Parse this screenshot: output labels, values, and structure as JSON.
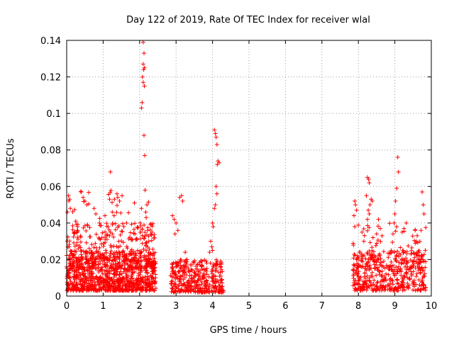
{
  "chart_data": {
    "type": "scatter",
    "title": "Day 122 of 2019, Rate Of TEC Index for receiver wlal",
    "xlabel": "GPS time / hours",
    "ylabel": "ROTI / TECUs",
    "xlim": [
      0,
      10
    ],
    "ylim": [
      0,
      0.14
    ],
    "x_ticks": [
      "0",
      "1",
      "2",
      "3",
      "4",
      "5",
      "6",
      "7",
      "8",
      "9",
      "10"
    ],
    "y_ticks": [
      "0",
      "0.02",
      "0.04",
      "0.06",
      "0.08",
      "0.1",
      "0.12",
      "0.14"
    ],
    "grid": true,
    "marker": "+",
    "color": "#ff0000",
    "point_groups": [
      {
        "x_range": [
          0.0,
          2.45
        ],
        "y_range": [
          0.003,
          0.025
        ],
        "count": 950
      },
      {
        "x_range": [
          0.0,
          2.45
        ],
        "y_range": [
          0.015,
          0.04
        ],
        "count": 240
      },
      {
        "x_range": [
          0.0,
          2.35
        ],
        "y_range": [
          0.03,
          0.058
        ],
        "count": 50
      },
      {
        "x_range": [
          2.85,
          4.3
        ],
        "y_range": [
          0.002,
          0.02
        ],
        "count": 360
      },
      {
        "x_range": [
          7.85,
          9.85
        ],
        "y_range": [
          0.003,
          0.025
        ],
        "count": 420
      },
      {
        "x_range": [
          7.85,
          9.85
        ],
        "y_range": [
          0.015,
          0.04
        ],
        "count": 90
      }
    ],
    "points": [
      [
        2.1,
        0.139
      ],
      [
        2.12,
        0.133
      ],
      [
        2.1,
        0.127
      ],
      [
        2.13,
        0.125
      ],
      [
        2.11,
        0.124
      ],
      [
        2.08,
        0.12
      ],
      [
        2.1,
        0.117
      ],
      [
        2.13,
        0.115
      ],
      [
        2.07,
        0.106
      ],
      [
        2.05,
        0.103
      ],
      [
        2.12,
        0.088
      ],
      [
        2.14,
        0.077
      ],
      [
        2.15,
        0.058
      ],
      [
        2.17,
        0.046
      ],
      [
        2.2,
        0.05
      ],
      [
        2.18,
        0.043
      ],
      [
        2.05,
        0.048
      ],
      [
        2.02,
        0.04
      ],
      [
        2.22,
        0.036
      ],
      [
        2.25,
        0.03
      ],
      [
        1.2,
        0.068
      ],
      [
        1.38,
        0.056
      ],
      [
        1.4,
        0.054
      ],
      [
        1.45,
        0.052
      ],
      [
        1.52,
        0.055
      ],
      [
        1.25,
        0.046
      ],
      [
        1.3,
        0.044
      ],
      [
        1.2,
        0.035
      ],
      [
        1.25,
        0.034
      ],
      [
        0.05,
        0.055
      ],
      [
        0.08,
        0.053
      ],
      [
        0.1,
        0.048
      ],
      [
        0.02,
        0.046
      ],
      [
        0.4,
        0.057
      ],
      [
        0.45,
        0.054
      ],
      [
        0.5,
        0.052
      ],
      [
        0.55,
        0.05
      ],
      [
        0.75,
        0.048
      ],
      [
        0.8,
        0.045
      ],
      [
        0.9,
        0.04
      ],
      [
        1.05,
        0.044
      ],
      [
        0.25,
        0.041
      ],
      [
        0.3,
        0.038
      ],
      [
        2.9,
        0.044
      ],
      [
        2.95,
        0.042
      ],
      [
        3.0,
        0.04
      ],
      [
        3.05,
        0.036
      ],
      [
        2.97,
        0.034
      ],
      [
        3.1,
        0.054
      ],
      [
        3.15,
        0.055
      ],
      [
        3.18,
        0.052
      ],
      [
        3.25,
        0.024
      ],
      [
        3.3,
        0.02
      ],
      [
        4.05,
        0.091
      ],
      [
        4.08,
        0.089
      ],
      [
        4.1,
        0.087
      ],
      [
        4.12,
        0.083
      ],
      [
        4.15,
        0.074
      ],
      [
        4.18,
        0.073
      ],
      [
        4.13,
        0.072
      ],
      [
        4.1,
        0.06
      ],
      [
        4.12,
        0.056
      ],
      [
        4.08,
        0.05
      ],
      [
        4.05,
        0.048
      ],
      [
        4.0,
        0.04
      ],
      [
        4.02,
        0.038
      ],
      [
        3.95,
        0.03
      ],
      [
        3.98,
        0.027
      ],
      [
        4.0,
        0.025
      ],
      [
        3.92,
        0.024
      ],
      [
        7.9,
        0.052
      ],
      [
        7.92,
        0.05
      ],
      [
        7.95,
        0.047
      ],
      [
        7.88,
        0.044
      ],
      [
        7.9,
        0.038
      ],
      [
        8.25,
        0.065
      ],
      [
        8.28,
        0.064
      ],
      [
        8.3,
        0.062
      ],
      [
        8.22,
        0.055
      ],
      [
        8.35,
        0.053
      ],
      [
        8.32,
        0.05
      ],
      [
        8.38,
        0.052
      ],
      [
        8.27,
        0.047
      ],
      [
        8.3,
        0.045
      ],
      [
        8.25,
        0.042
      ],
      [
        8.55,
        0.042
      ],
      [
        8.6,
        0.037
      ],
      [
        8.5,
        0.034
      ],
      [
        8.4,
        0.032
      ],
      [
        8.65,
        0.033
      ],
      [
        8.1,
        0.035
      ],
      [
        8.15,
        0.03
      ],
      [
        9.08,
        0.076
      ],
      [
        9.1,
        0.068
      ],
      [
        9.05,
        0.059
      ],
      [
        9.02,
        0.052
      ],
      [
        9.0,
        0.045
      ],
      [
        8.98,
        0.04
      ],
      [
        9.05,
        0.038
      ],
      [
        9.25,
        0.037
      ],
      [
        9.2,
        0.035
      ],
      [
        8.95,
        0.034
      ],
      [
        9.75,
        0.057
      ],
      [
        9.78,
        0.05
      ],
      [
        9.8,
        0.045
      ],
      [
        9.72,
        0.036
      ],
      [
        9.75,
        0.022
      ],
      [
        9.8,
        0.019
      ]
    ]
  }
}
